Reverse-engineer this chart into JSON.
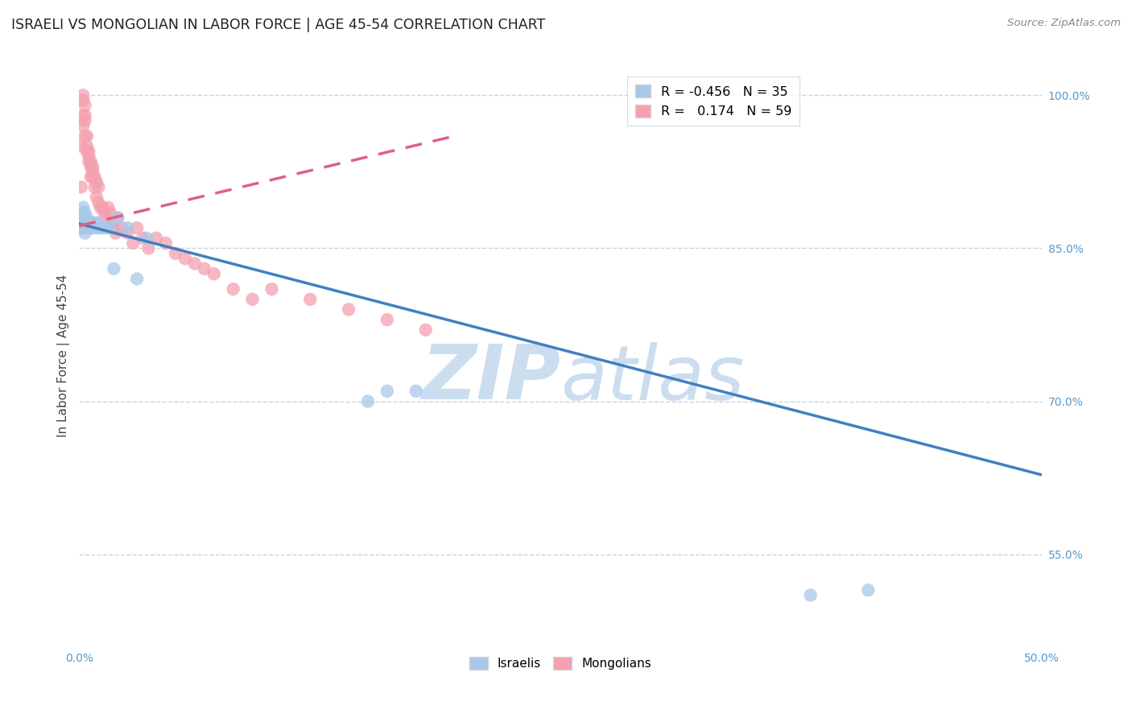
{
  "title": "ISRAELI VS MONGOLIAN IN LABOR FORCE | AGE 45-54 CORRELATION CHART",
  "source": "Source: ZipAtlas.com",
  "ylabel": "In Labor Force | Age 45-54",
  "x_min": 0.0,
  "x_max": 0.5,
  "y_min": 0.46,
  "y_max": 1.03,
  "x_ticks": [
    0.0,
    0.05,
    0.1,
    0.15,
    0.2,
    0.25,
    0.3,
    0.35,
    0.4,
    0.45,
    0.5
  ],
  "x_tick_labels": [
    "0.0%",
    "",
    "",
    "",
    "",
    "",
    "",
    "",
    "",
    "",
    "50.0%"
  ],
  "y_ticks": [
    0.55,
    0.7,
    0.85,
    1.0
  ],
  "y_tick_labels": [
    "55.0%",
    "70.0%",
    "85.0%",
    "100.0%"
  ],
  "israelis_x": [
    0.001,
    0.001,
    0.001,
    0.002,
    0.002,
    0.002,
    0.003,
    0.003,
    0.003,
    0.003,
    0.004,
    0.004,
    0.004,
    0.005,
    0.005,
    0.006,
    0.006,
    0.007,
    0.008,
    0.009,
    0.01,
    0.011,
    0.012,
    0.014,
    0.016,
    0.018,
    0.02,
    0.025,
    0.03,
    0.035,
    0.15,
    0.16,
    0.175,
    0.38,
    0.41
  ],
  "israelis_y": [
    0.88,
    0.875,
    0.87,
    0.89,
    0.885,
    0.88,
    0.875,
    0.87,
    0.865,
    0.885,
    0.88,
    0.875,
    0.87,
    0.875,
    0.87,
    0.875,
    0.87,
    0.87,
    0.875,
    0.87,
    0.875,
    0.87,
    0.87,
    0.87,
    0.87,
    0.83,
    0.88,
    0.87,
    0.82,
    0.86,
    0.7,
    0.71,
    0.71,
    0.51,
    0.515
  ],
  "mongolians_x": [
    0.001,
    0.001,
    0.001,
    0.002,
    0.002,
    0.002,
    0.002,
    0.003,
    0.003,
    0.003,
    0.003,
    0.004,
    0.004,
    0.004,
    0.005,
    0.005,
    0.005,
    0.006,
    0.006,
    0.006,
    0.007,
    0.007,
    0.007,
    0.008,
    0.008,
    0.009,
    0.009,
    0.01,
    0.01,
    0.011,
    0.012,
    0.013,
    0.014,
    0.015,
    0.016,
    0.017,
    0.018,
    0.019,
    0.02,
    0.022,
    0.025,
    0.028,
    0.03,
    0.033,
    0.036,
    0.04,
    0.045,
    0.05,
    0.055,
    0.06,
    0.065,
    0.07,
    0.08,
    0.09,
    0.1,
    0.12,
    0.14,
    0.16,
    0.18
  ],
  "mongolians_y": [
    0.87,
    0.91,
    0.95,
    0.97,
    0.98,
    0.995,
    1.0,
    0.96,
    0.99,
    0.98,
    0.975,
    0.95,
    0.945,
    0.96,
    0.94,
    0.935,
    0.945,
    0.93,
    0.935,
    0.92,
    0.92,
    0.93,
    0.925,
    0.91,
    0.92,
    0.915,
    0.9,
    0.91,
    0.895,
    0.89,
    0.89,
    0.885,
    0.88,
    0.89,
    0.885,
    0.875,
    0.87,
    0.865,
    0.88,
    0.87,
    0.865,
    0.855,
    0.87,
    0.86,
    0.85,
    0.86,
    0.855,
    0.845,
    0.84,
    0.835,
    0.83,
    0.825,
    0.81,
    0.8,
    0.81,
    0.8,
    0.79,
    0.78,
    0.77
  ],
  "israeli_color": "#a8c8e8",
  "mongolian_color": "#f4a0b0",
  "israeli_line_color": "#4080c0",
  "mongolian_line_color": "#e06080",
  "mongolian_line_dashed": true,
  "watermark_zip": "ZIP",
  "watermark_atlas": "atlas",
  "watermark_color": "#ccddf0",
  "background_color": "#ffffff",
  "grid_color": "#c8d4e4",
  "title_color": "#222222",
  "source_color": "#888888",
  "axis_label_color": "#444444",
  "tick_color": "#5599cc",
  "israeli_trend_x": [
    0.0,
    0.5
  ],
  "israeli_trend_y": [
    0.874,
    0.628
  ],
  "mongolian_trend_x": [
    0.0,
    0.195
  ],
  "mongolian_trend_y": [
    0.872,
    0.96
  ]
}
